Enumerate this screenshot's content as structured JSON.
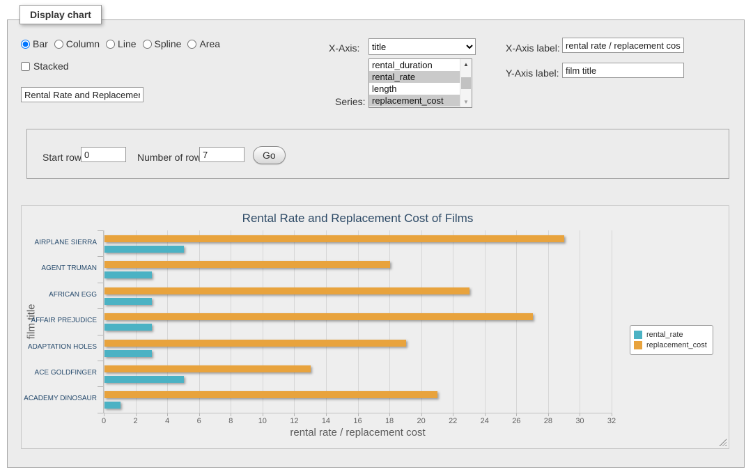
{
  "panel": {
    "title": "Display chart"
  },
  "chart_type": {
    "options": [
      {
        "label": "Bar",
        "selected": true
      },
      {
        "label": "Column",
        "selected": false
      },
      {
        "label": "Line",
        "selected": false
      },
      {
        "label": "Spline",
        "selected": false
      },
      {
        "label": "Area",
        "selected": false
      }
    ]
  },
  "stacked": {
    "label": "Stacked",
    "checked": false
  },
  "chart_title_input": {
    "value": "Rental Rate and Replacement Cost of Films"
  },
  "x_axis": {
    "label": "X-Axis:",
    "selected": "title"
  },
  "series_select": {
    "label": "Series:",
    "options": [
      {
        "label": "rental_duration",
        "selected": false
      },
      {
        "label": "rental_rate",
        "selected": true
      },
      {
        "label": "length",
        "selected": false
      },
      {
        "label": "replacement_cost",
        "selected": true
      }
    ]
  },
  "x_axis_label": {
    "label": "X-Axis label:",
    "value": "rental rate / replacement cost"
  },
  "y_axis_label": {
    "label": "Y-Axis label:",
    "value": "film title"
  },
  "rows_panel": {
    "start_row_label": "Start row:",
    "start_row_value": "0",
    "num_rows_label": "Number of rows:",
    "num_rows_value": "7",
    "go_label": "Go"
  },
  "chart_data": {
    "type": "bar",
    "title": "Rental Rate and Replacement Cost of Films",
    "categories": [
      "AIRPLANE SIERRA",
      "AGENT TRUMAN",
      "AFRICAN EGG",
      "AFFAIR PREJUDICE",
      "ADAPTATION HOLES",
      "ACE GOLDFINGER",
      "ACADEMY DINOSAUR"
    ],
    "series": [
      {
        "name": "rental_rate",
        "color": "#4BB2C4",
        "values": [
          4.99,
          2.99,
          2.99,
          2.99,
          2.99,
          4.99,
          0.99
        ]
      },
      {
        "name": "replacement_cost",
        "color": "#E8A33D",
        "values": [
          28.99,
          17.99,
          22.99,
          26.99,
          18.99,
          12.99,
          20.99
        ]
      }
    ],
    "xlabel": "rental rate / replacement cost",
    "ylabel": "film title",
    "xlim": [
      0,
      32
    ],
    "xticks": [
      0,
      2,
      4,
      6,
      8,
      10,
      12,
      14,
      16,
      18,
      20,
      22,
      24,
      26,
      28,
      30,
      32
    ],
    "grid": true,
    "legend_position": "right"
  }
}
